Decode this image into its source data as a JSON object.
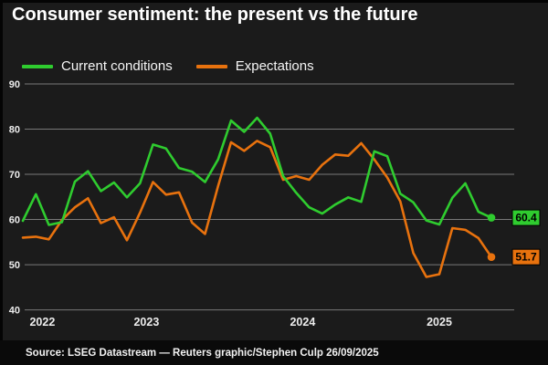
{
  "header": {
    "title": "Consumer sentiment: the present vs the future"
  },
  "legend": [
    {
      "label": "Current conditions",
      "color": "#2fcc2f"
    },
    {
      "label": "Expectations",
      "color": "#e8720e"
    }
  ],
  "footer": {
    "source": "Source: LSEG Datastream — Reuters graphic/Stephen Culp 26/09/2025"
  },
  "colors": {
    "background": "#1b1b1b",
    "footer_background": "#0a0a0a",
    "grid": "#787878",
    "tick_text": "#ececec",
    "badge_text": "#000000",
    "green": "#2fcc2f",
    "orange": "#e8720e"
  },
  "chart_data": {
    "type": "line",
    "title": "Consumer sentiment: the present vs the future",
    "frequency": "monthly",
    "x": [
      "Sep 2022",
      "Oct 2022",
      "Nov 2022",
      "Dec 2022",
      "Jan 2023",
      "Feb 2023",
      "Mar 2023",
      "Apr 2023",
      "May 2023",
      "Jun 2023",
      "Jul 2023",
      "Aug 2023",
      "Sep 2023",
      "Oct 2023",
      "Nov 2023",
      "Dec 2023",
      "Jan 2024",
      "Feb 2024",
      "Mar 2024",
      "Apr 2024",
      "May 2024",
      "Jun 2024",
      "Jul 2024",
      "Aug 2024",
      "Sep 2024",
      "Oct 2024",
      "Nov 2024",
      "Dec 2024",
      "Jan 2025",
      "Feb 2025",
      "Mar 2025",
      "Apr 2025",
      "May 2025",
      "Jun 2025",
      "Jul 2025",
      "Aug 2025",
      "Sep 2025"
    ],
    "series": [
      {
        "name": "Current conditions",
        "color": "#2fcc2f",
        "end_label": "60.4",
        "values": [
          59.7,
          65.6,
          58.8,
          59.4,
          68.4,
          70.7,
          66.3,
          68.2,
          64.9,
          68.0,
          76.6,
          75.7,
          71.4,
          70.6,
          68.3,
          73.3,
          81.9,
          79.4,
          82.5,
          79.0,
          69.6,
          65.9,
          62.7,
          61.3,
          63.3,
          64.9,
          63.9,
          75.1,
          74.0,
          65.7,
          63.8,
          59.8,
          58.9,
          64.8,
          68.0,
          61.7,
          60.4
        ]
      },
      {
        "name": "Expectations",
        "color": "#e8720e",
        "end_label": "51.7",
        "values": [
          56.0,
          56.2,
          55.6,
          59.9,
          62.7,
          64.7,
          59.2,
          60.5,
          55.4,
          61.5,
          68.3,
          65.5,
          66.0,
          59.3,
          56.8,
          67.4,
          77.1,
          75.2,
          77.4,
          76.0,
          68.8,
          69.6,
          68.8,
          72.1,
          74.4,
          74.1,
          76.9,
          73.3,
          69.3,
          64.0,
          52.6,
          47.3,
          47.9,
          58.1,
          57.7,
          55.9,
          51.7
        ]
      }
    ],
    "yticks": [
      90,
      80,
      70,
      60,
      50,
      40
    ],
    "ylim": [
      40,
      90
    ],
    "xtick_labels": [
      "2022",
      "2023",
      "2024",
      "2025"
    ],
    "grid": "horizontal",
    "legend_position": "top-left",
    "end_markers": "dot-with-value-badge"
  }
}
